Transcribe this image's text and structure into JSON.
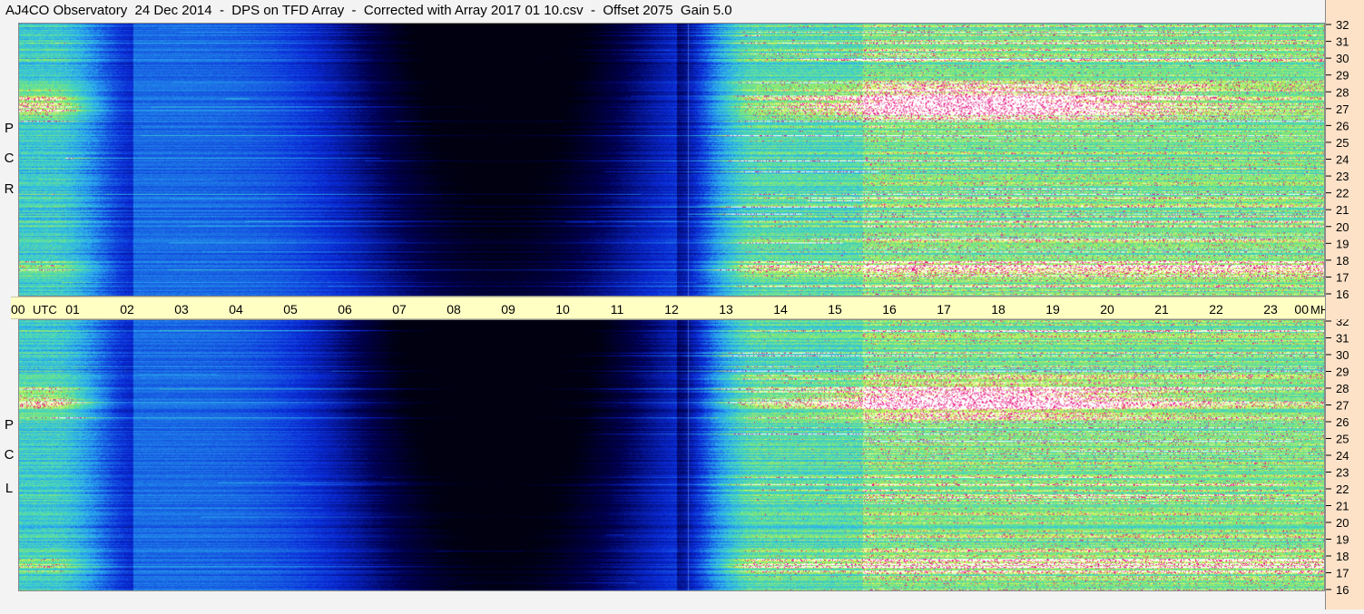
{
  "header": {
    "title": "AJ4CO Observatory  24 Dec 2014  -  DPS on TFD Array  -  Corrected with Array 2017 01 10.csv  -  Offset 2075  Gain 5.0"
  },
  "panels": [
    {
      "id": "top",
      "letters": [
        "P",
        "C",
        "R"
      ]
    },
    {
      "id": "bottom",
      "letters": [
        "P",
        "C",
        "L"
      ]
    }
  ],
  "chart_data": {
    "type": "heatmap",
    "title": "AJ4CO Observatory  24 Dec 2014  -  DPS on TFD Array  -  Corrected with Array 2017 01 10.csv  -  Offset 2075  Gain 5.0",
    "x_tick_labels": [
      "00",
      "01",
      "02",
      "03",
      "04",
      "05",
      "06",
      "07",
      "08",
      "09",
      "10",
      "11",
      "12",
      "13",
      "14",
      "15",
      "16",
      "17",
      "18",
      "19",
      "20",
      "21",
      "22",
      "23",
      "00"
    ],
    "x_unit": "UTC",
    "y_tick_labels": [
      "32",
      "31",
      "30",
      "29",
      "28",
      "27",
      "26",
      "25",
      "24",
      "23",
      "22",
      "21",
      "20",
      "19",
      "18",
      "17",
      "16"
    ],
    "y_unit": "MHz",
    "ylim": [
      16,
      32
    ],
    "xlim": [
      0,
      24
    ],
    "series": [
      {
        "name": "RCP"
      },
      {
        "name": "LCP"
      }
    ],
    "colors": {
      "night": "#000010",
      "low": "#0a2bd8",
      "mid": "#2aa8f0",
      "high": "#8ae86a",
      "peak": "#ffffff",
      "band": "#e8208a",
      "label_bar": "#ffffc4",
      "freq_axis": "#fde2c8"
    }
  }
}
